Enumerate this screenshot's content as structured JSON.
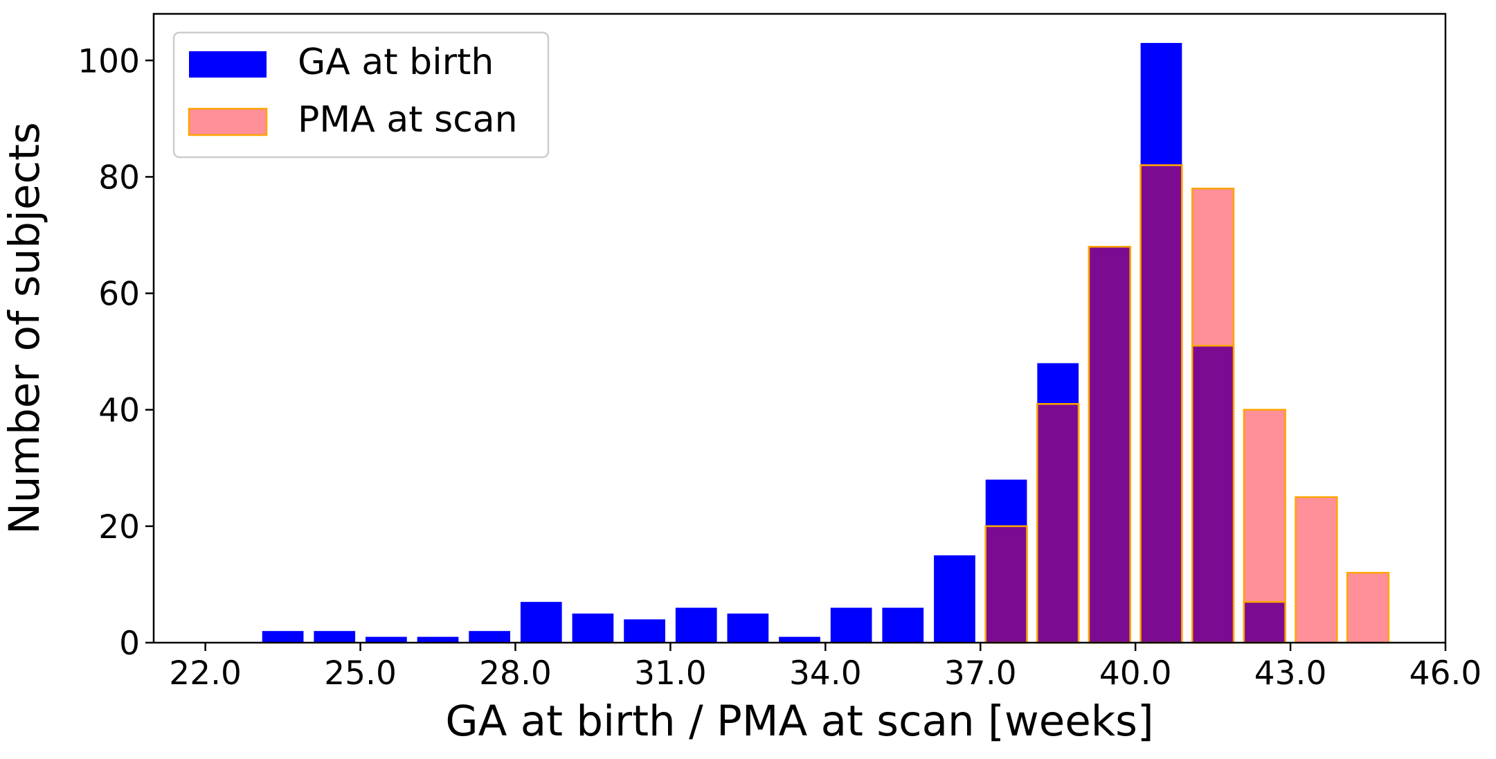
{
  "chart_data": {
    "type": "bar",
    "title": "",
    "xlabel": "GA at birth / PMA at scan [weeks]",
    "ylabel": "Number of subjects",
    "xlim": [
      21.0,
      46.0
    ],
    "ylim": [
      0,
      108
    ],
    "xticks": [
      22.0,
      25.0,
      28.0,
      31.0,
      34.0,
      37.0,
      40.0,
      43.0,
      46.0
    ],
    "xtick_labels": [
      "22.0",
      "25.0",
      "28.0",
      "31.0",
      "34.0",
      "37.0",
      "40.0",
      "43.0",
      "46.0"
    ],
    "yticks": [
      0,
      20,
      40,
      60,
      80,
      100
    ],
    "ytick_labels": [
      "0",
      "20",
      "40",
      "60",
      "80",
      "100"
    ],
    "bin_width": 1.0,
    "bar_width": 0.8,
    "grid": false,
    "legend_position": "top-left",
    "overlay_color": "#7b0c92",
    "series": [
      {
        "name": "GA at birth",
        "color": "#0000ff",
        "edge_color": "#0000ff",
        "x": [
          22,
          23,
          24,
          25,
          26,
          27,
          28,
          29,
          30,
          31,
          32,
          33,
          34,
          35,
          36,
          37,
          38,
          39,
          40,
          41,
          42
        ],
        "values": [
          0,
          2,
          2,
          1,
          1,
          2,
          7,
          5,
          4,
          6,
          5,
          1,
          6,
          6,
          15,
          28,
          48,
          68,
          103,
          51,
          7
        ]
      },
      {
        "name": "PMA at scan",
        "color": "#ff8f99",
        "edge_color": "#ffa500",
        "x": [
          37,
          38,
          39,
          40,
          41,
          42,
          43,
          44
        ],
        "values": [
          20,
          41,
          68,
          82,
          78,
          40,
          25,
          12
        ]
      }
    ]
  }
}
